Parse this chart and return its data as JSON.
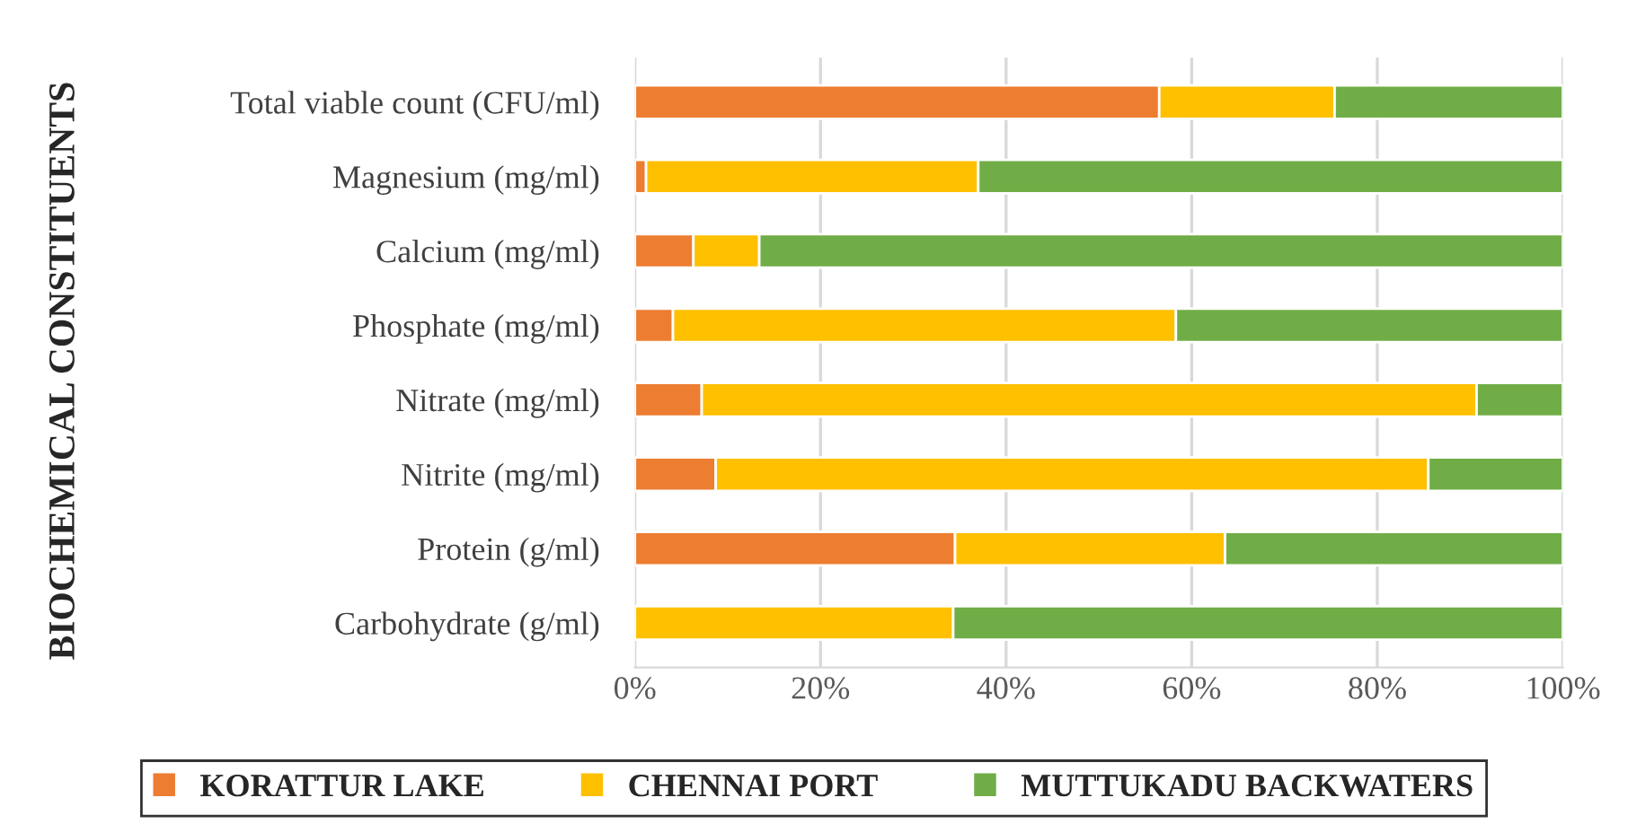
{
  "chart_data": {
    "type": "bar",
    "orientation": "horizontal",
    "stacked": true,
    "ylabel": "BIOCHEMICAL CONSTITUENTS",
    "categories": [
      "Total viable count (CFU/ml)",
      "Magnesium (mg/ml)",
      "Calcium (mg/ml)",
      "Phosphate (mg/ml)",
      "Nitrate (mg/ml)",
      "Nitrite (mg/ml)",
      "Protein (g/ml)",
      "Carbohydrate (g/ml)"
    ],
    "series": [
      {
        "name": "KORATTUR LAKE",
        "color": "#ed7d31",
        "values": [
          56.5,
          1.2,
          6.3,
          4.1,
          7.2,
          8.7,
          34.5,
          0
        ]
      },
      {
        "name": "CHENNAI PORT",
        "color": "#ffc000",
        "values": [
          18.9,
          35.8,
          7.1,
          54.2,
          83.5,
          76.8,
          29.1,
          34.3
        ]
      },
      {
        "name": "MUTTUKADU BACKWATERS",
        "color": "#70ad47",
        "values": [
          24.6,
          63.0,
          86.6,
          41.7,
          9.3,
          14.5,
          36.4,
          65.7
        ]
      }
    ],
    "xlim": [
      0,
      100
    ],
    "xticks": [
      {
        "value": 0,
        "label": "0%"
      },
      {
        "value": 20,
        "label": "20%"
      },
      {
        "value": 40,
        "label": "40%"
      },
      {
        "value": 60,
        "label": "60%"
      },
      {
        "value": 80,
        "label": "80%"
      },
      {
        "value": 100,
        "label": "100%"
      }
    ],
    "grid": "x",
    "legend": "bottom"
  }
}
